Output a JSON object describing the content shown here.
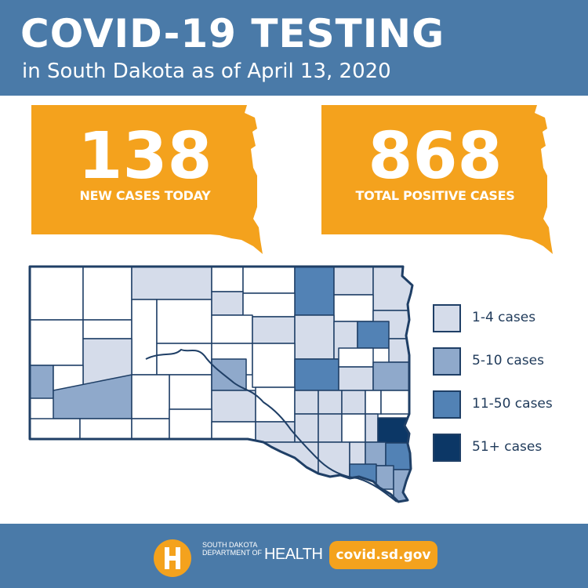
{
  "header": {
    "title": "COVID-19 TESTING",
    "subtitle": "in South Dakota as of April 13, 2020"
  },
  "stats": [
    {
      "value": "138",
      "label": "NEW CASES TODAY"
    },
    {
      "value": "868",
      "label": "TOTAL POSITIVE CASES"
    }
  ],
  "legend": [
    {
      "label": "1-4 cases",
      "color": "#d5dcea"
    },
    {
      "label": "5-10 cases",
      "color": "#8fa9cb"
    },
    {
      "label": "11-50 cases",
      "color": "#5282b5"
    },
    {
      "label": "51+ cases",
      "color": "#0c3766"
    }
  ],
  "colors": {
    "brand_blue": "#4a7aa8",
    "accent_orange": "#f4a21d",
    "map_outline": "#1f3f66",
    "no_cases": "#ffffff"
  },
  "footer": {
    "org_line1": "SOUTH DAKOTA",
    "org_line2": "DEPARTMENT OF",
    "org_health": "HEALTH",
    "url": "covid.sd.gov",
    "logo_icon": "sd-health-logo-icon"
  }
}
